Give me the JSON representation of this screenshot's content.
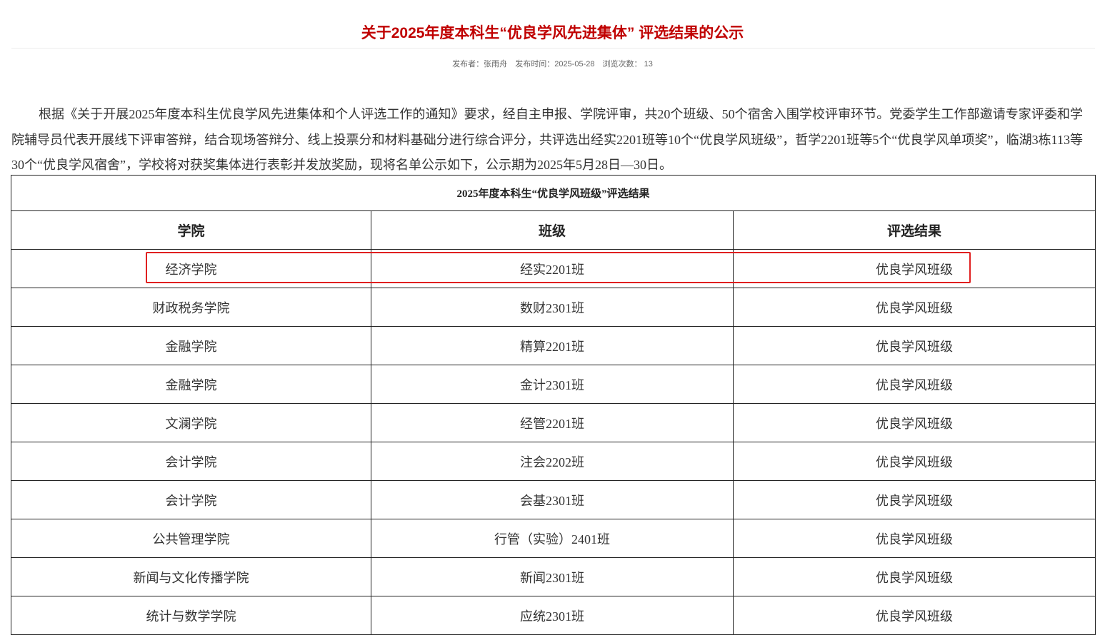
{
  "title": "关于2025年度本科生“优良学风先进集体” 评选结果的公示",
  "meta": {
    "publisher": "发布者：张雨舟",
    "date": "发布时间：2025-05-28",
    "views": "浏览次数： 13"
  },
  "paragraph": "根据《关于开展2025年度本科生优良学风先进集体和个人评选工作的通知》要求，经自主申报、学院评审，共20个班级、50个宿舍入围学校评审环节。党委学生工作部邀请专家评委和学院辅导员代表开展线下评审答辩，结合现场答辩分、线上投票分和材料基础分进行综合评分，共评选出经实2201班等10个“优良学风班级”，哲学2201班等5个“优良学风单项奖”，临湖3栋113等30个“优良学风宿舍”，学校将对获奖集体进行表彰并发放奖励，现将名单公示如下，公示期为2025年5月28日—30日。",
  "table": {
    "caption": "2025年度本科生“优良学风班级”评选结果",
    "headers": [
      "学院",
      "班级",
      "评选结果"
    ],
    "rows": [
      [
        "经济学院",
        "经实2201班",
        "优良学风班级"
      ],
      [
        "财政税务学院",
        "数财2301班",
        "优良学风班级"
      ],
      [
        "金融学院",
        "精算2201班",
        "优良学风班级"
      ],
      [
        "金融学院",
        "金计2301班",
        "优良学风班级"
      ],
      [
        "文澜学院",
        "经管2201班",
        "优良学风班级"
      ],
      [
        "会计学院",
        "注会2202班",
        "优良学风班级"
      ],
      [
        "会计学院",
        "会基2301班",
        "优良学风班级"
      ],
      [
        "公共管理学院",
        "行管（实验）2401班",
        "优良学风班级"
      ],
      [
        "新闻与文化传播学院",
        "新闻2301班",
        "优良学风班级"
      ],
      [
        "统计与数学学院",
        "应统2301班",
        "优良学风班级"
      ]
    ]
  },
  "colors": {
    "title": "#c00000",
    "highlight": "#e02020"
  }
}
